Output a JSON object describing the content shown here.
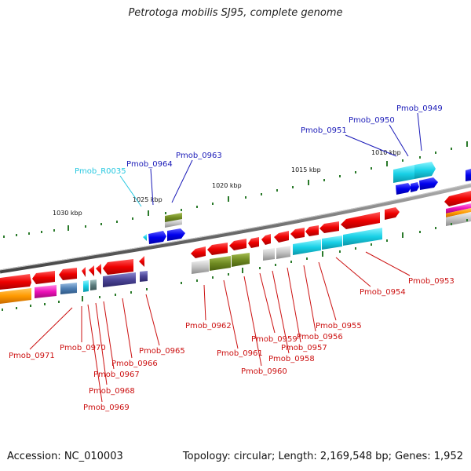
{
  "title": "Petrotoga mobilis SJ95, complete genome",
  "footer": {
    "accession": "Accession: NC_010003",
    "stats": "Topology: circular; Length: 2,169,548 bp; Genes: 1,952"
  },
  "colors": {
    "label_top": "#1a1ab8",
    "label_top_cyan": "#28c8e0",
    "label_bottom": "#cc1111",
    "tick": "#2a7a2a",
    "backbone": "#777777"
  },
  "kbp_labels": [
    "1030 kbp",
    "1025 kbp",
    "1020 kbp",
    "1015 kbp",
    "1010 kbp"
  ],
  "top_labels": [
    "Pmob_0949",
    "Pmob_0950",
    "Pmob_0951",
    "Pmob_0963",
    "Pmob_0964",
    "Pmob_R0035"
  ],
  "bottom_labels": [
    "Pmob_0953",
    "Pmob_0954",
    "Pmob_0955",
    "Pmob_0956",
    "Pmob_0957",
    "Pmob_0958",
    "Pmob_0959",
    "Pmob_0960",
    "Pmob_0961",
    "Pmob_0962",
    "Pmob_0965",
    "Pmob_0966",
    "Pmob_0967",
    "Pmob_0968",
    "Pmob_0969",
    "Pmob_0970",
    "Pmob_0971"
  ]
}
